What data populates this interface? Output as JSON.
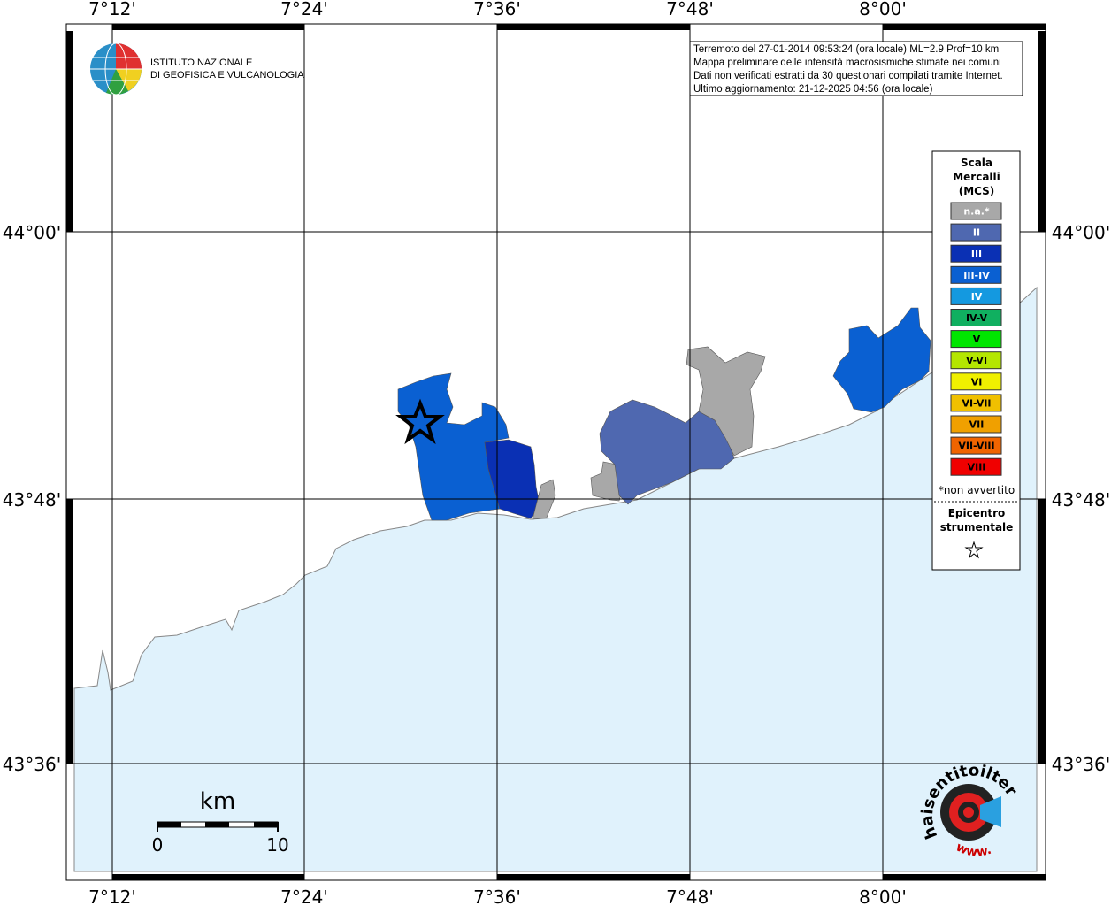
{
  "axes": {
    "lon_labels": [
      "7°12'",
      "7°24'",
      "7°36'",
      "7°48'",
      "8°00'"
    ],
    "lat_labels": [
      "44°00'",
      "43°48'",
      "43°36'"
    ]
  },
  "info": [
    "Terremoto del 27-01-2014 09:53:24 (ora locale) ML=2.9 Prof=10 km",
    "Mappa preliminare delle intensità macrosismiche stimate nei comuni",
    "Dati non verificati estratti da 30 questionari compilati tramite Internet.",
    "Ultimo aggiornamento: 21-12-2025 04:56 (ora locale)"
  ],
  "logo": {
    "lines": [
      "ISTITUTO NAZIONALE",
      "DI GEOFISICA E VULCANOLOGIA"
    ]
  },
  "legend": {
    "title": [
      "Scala",
      "Mercalli",
      "(MCS)"
    ],
    "items": [
      {
        "label": "n.a.*",
        "color": "#a8a8a8"
      },
      {
        "label": "II",
        "color": "#4f68b0"
      },
      {
        "label": "III",
        "color": "#0a30b4"
      },
      {
        "label": "III-IV",
        "color": "#0a60d2"
      },
      {
        "label": "IV",
        "color": "#1499e0"
      },
      {
        "label": "IV-V",
        "color": "#10b060"
      },
      {
        "label": "V",
        "color": "#00e600"
      },
      {
        "label": "V-VI",
        "color": "#b4e600"
      },
      {
        "label": "VI",
        "color": "#f0f000"
      },
      {
        "label": "VI-VII",
        "color": "#f0c000"
      },
      {
        "label": "VII",
        "color": "#f0a000"
      },
      {
        "label": "VII-VIII",
        "color": "#f06400"
      },
      {
        "label": "VIII",
        "color": "#f00000"
      }
    ],
    "note": "*non avvertito",
    "epicenter": [
      "Epicentro",
      "strumentale"
    ]
  },
  "scale": {
    "unit": "km",
    "labels": [
      "0",
      "10"
    ]
  },
  "badge": {
    "text": "haisentitoilterremoto.it",
    "prefix": "www."
  }
}
